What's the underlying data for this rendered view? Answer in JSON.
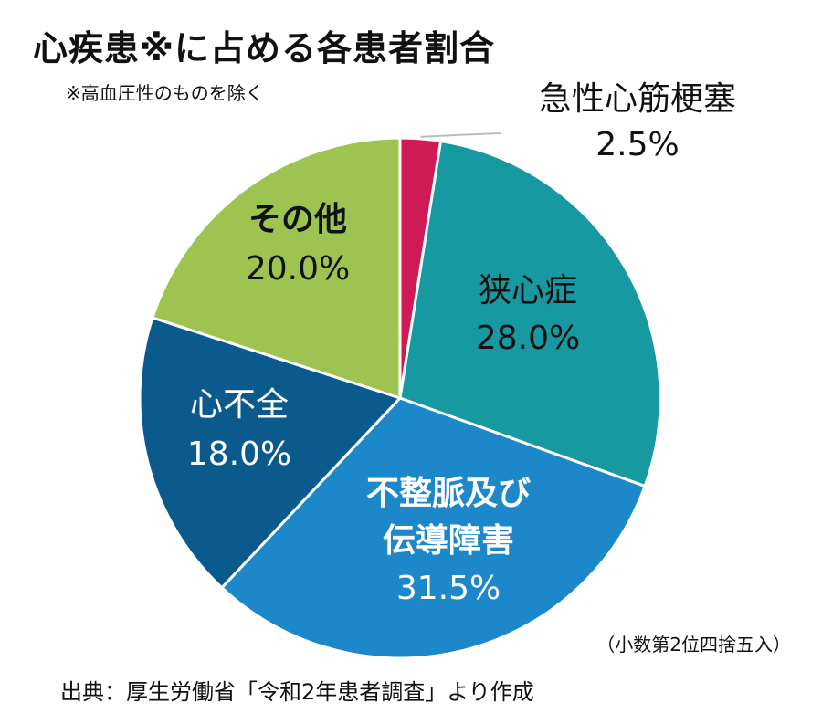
{
  "title": "心疾患※に占める各患者割合",
  "note": "※高血圧性のものを除く",
  "rounding_note": "（小数第2位四捨五入）",
  "source": "出典：厚生労働省「令和2年患者調査」より作成",
  "colors": {
    "acute_mi": "#D01A55",
    "angina": "#1699A0",
    "arrhythmia": "#1C87C9",
    "heart_failure": "#0A5A8E",
    "other": "#9DC451",
    "leader_line": "#BBBBBB"
  },
  "chart_data": {
    "type": "pie",
    "title": "心疾患※に占める各患者割合",
    "unit": "%",
    "slices": [
      {
        "key": "acute_mi",
        "label": [
          "急性心筋梗塞"
        ],
        "value": 2.5,
        "value_label": "2.5%",
        "color": "#D01A55",
        "label_position": "outside"
      },
      {
        "key": "angina",
        "label": [
          "狭心症"
        ],
        "value": 28.0,
        "value_label": "28.0%",
        "color": "#1699A0",
        "label_position": "inside"
      },
      {
        "key": "arrhythmia",
        "label": [
          "不整脈及び",
          "伝導障害"
        ],
        "value": 31.5,
        "value_label": "31.5%",
        "color": "#1C87C9",
        "label_position": "inside"
      },
      {
        "key": "heart_failure",
        "label": [
          "心不全"
        ],
        "value": 18.0,
        "value_label": "18.0%",
        "color": "#0A5A8E",
        "label_position": "inside"
      },
      {
        "key": "other",
        "label": [
          "その他"
        ],
        "value": 20.0,
        "value_label": "20.0%",
        "color": "#9DC451",
        "label_position": "inside"
      }
    ],
    "start_angle": "12 o'clock",
    "direction": "clockwise"
  }
}
